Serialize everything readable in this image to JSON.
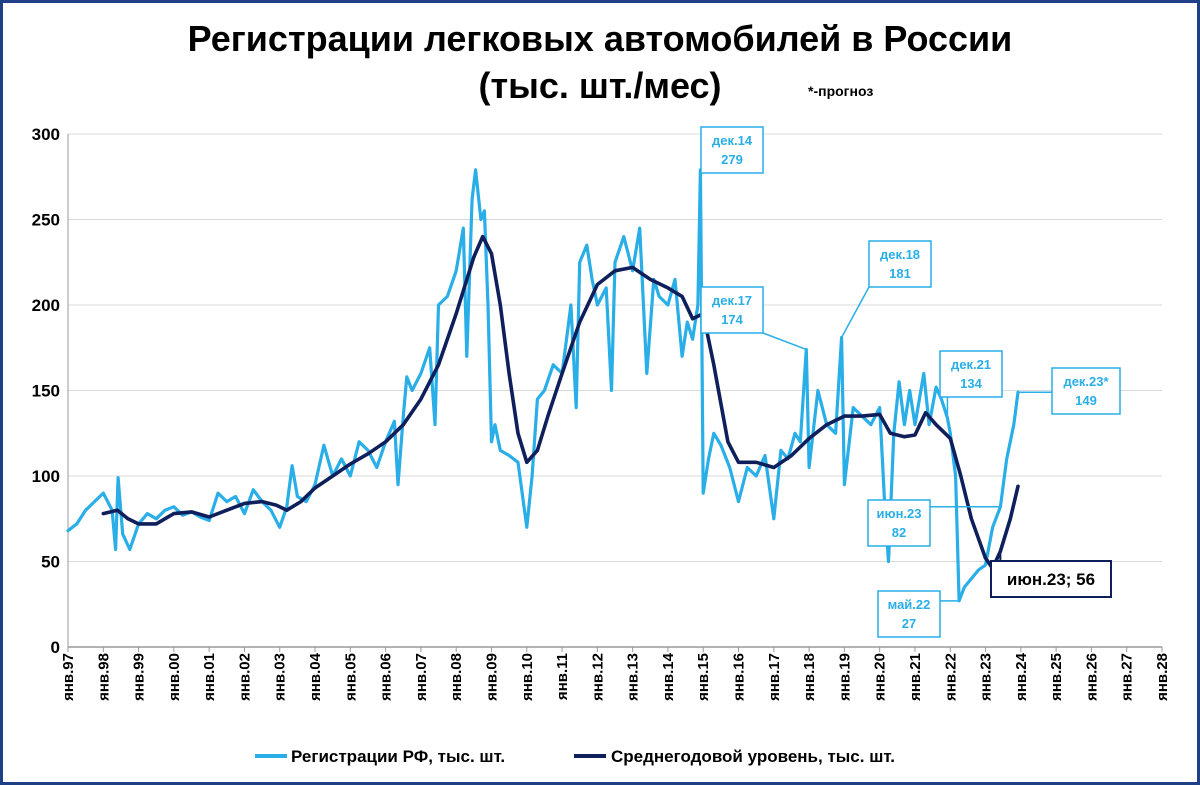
{
  "chart_data": {
    "type": "line",
    "title_line1": "Регистрации легковых автомобилей в России",
    "title_line2": "(тыс. шт./мес)",
    "note": "*-прогноз",
    "ylim": [
      0,
      300
    ],
    "yticks": [
      "0",
      "50",
      "100",
      "150",
      "200",
      "250",
      "300"
    ],
    "xlim": [
      1997,
      2028
    ],
    "xticks": [
      "янв.97",
      "янв.98",
      "янв.99",
      "янв.00",
      "янв.01",
      "янв.02",
      "янв.03",
      "янв.04",
      "янв.05",
      "янв.06",
      "янв.07",
      "янв.08",
      "янв.09",
      "янв.10",
      "янв.11",
      "янв.12",
      "янв.13",
      "янв.14",
      "янв.15",
      "янв.16",
      "янв.17",
      "янв.18",
      "янв.19",
      "янв.20",
      "янв.21",
      "янв.22",
      "янв.23",
      "янв.24",
      "янв.25",
      "янв.26",
      "янв.27",
      "янв.28"
    ],
    "grid": "horizontal",
    "legend_position": "bottom",
    "colors": {
      "monthly": "#29aee8",
      "average": "#0f1f5c",
      "axis": "#999999",
      "grid": "#d9d9d9"
    },
    "series": [
      {
        "name": "Регистрации РФ, тыс. шт.",
        "points": [
          [
            1997.0,
            68
          ],
          [
            1997.25,
            72
          ],
          [
            1997.5,
            80
          ],
          [
            1997.75,
            85
          ],
          [
            1998.0,
            90
          ],
          [
            1998.25,
            80
          ],
          [
            1998.35,
            57
          ],
          [
            1998.42,
            99
          ],
          [
            1998.55,
            66
          ],
          [
            1998.75,
            57
          ],
          [
            1999.0,
            72
          ],
          [
            1999.25,
            78
          ],
          [
            1999.5,
            75
          ],
          [
            1999.75,
            80
          ],
          [
            2000.0,
            82
          ],
          [
            2000.25,
            77
          ],
          [
            2000.5,
            79
          ],
          [
            2000.75,
            76
          ],
          [
            2001.0,
            74
          ],
          [
            2001.25,
            90
          ],
          [
            2001.5,
            85
          ],
          [
            2001.75,
            88
          ],
          [
            2002.0,
            78
          ],
          [
            2002.25,
            92
          ],
          [
            2002.5,
            85
          ],
          [
            2002.75,
            80
          ],
          [
            2003.0,
            70
          ],
          [
            2003.2,
            82
          ],
          [
            2003.35,
            106
          ],
          [
            2003.5,
            88
          ],
          [
            2003.75,
            85
          ],
          [
            2004.0,
            95
          ],
          [
            2004.25,
            118
          ],
          [
            2004.5,
            100
          ],
          [
            2004.75,
            110
          ],
          [
            2005.0,
            100
          ],
          [
            2005.25,
            120
          ],
          [
            2005.5,
            115
          ],
          [
            2005.75,
            105
          ],
          [
            2006.0,
            120
          ],
          [
            2006.25,
            132
          ],
          [
            2006.35,
            95
          ],
          [
            2006.5,
            135
          ],
          [
            2006.6,
            158
          ],
          [
            2006.75,
            150
          ],
          [
            2007.0,
            160
          ],
          [
            2007.25,
            175
          ],
          [
            2007.4,
            130
          ],
          [
            2007.5,
            200
          ],
          [
            2007.75,
            205
          ],
          [
            2008.0,
            220
          ],
          [
            2008.2,
            245
          ],
          [
            2008.3,
            170
          ],
          [
            2008.45,
            262
          ],
          [
            2008.55,
            279
          ],
          [
            2008.7,
            250
          ],
          [
            2008.8,
            255
          ],
          [
            2008.9,
            200
          ],
          [
            2009.0,
            120
          ],
          [
            2009.1,
            130
          ],
          [
            2009.25,
            115
          ],
          [
            2009.5,
            112
          ],
          [
            2009.75,
            108
          ],
          [
            2010.0,
            70
          ],
          [
            2010.15,
            100
          ],
          [
            2010.3,
            145
          ],
          [
            2010.5,
            150
          ],
          [
            2010.75,
            165
          ],
          [
            2011.0,
            160
          ],
          [
            2011.25,
            200
          ],
          [
            2011.4,
            140
          ],
          [
            2011.5,
            225
          ],
          [
            2011.7,
            235
          ],
          [
            2011.85,
            215
          ],
          [
            2012.0,
            200
          ],
          [
            2012.25,
            210
          ],
          [
            2012.4,
            150
          ],
          [
            2012.5,
            225
          ],
          [
            2012.75,
            240
          ],
          [
            2013.0,
            220
          ],
          [
            2013.2,
            245
          ],
          [
            2013.4,
            160
          ],
          [
            2013.6,
            215
          ],
          [
            2013.75,
            205
          ],
          [
            2014.0,
            200
          ],
          [
            2014.2,
            215
          ],
          [
            2014.4,
            170
          ],
          [
            2014.55,
            190
          ],
          [
            2014.7,
            180
          ],
          [
            2014.85,
            200
          ],
          [
            2014.92,
            279
          ],
          [
            2015.0,
            90
          ],
          [
            2015.15,
            110
          ],
          [
            2015.3,
            125
          ],
          [
            2015.5,
            118
          ],
          [
            2015.75,
            105
          ],
          [
            2016.0,
            85
          ],
          [
            2016.25,
            105
          ],
          [
            2016.5,
            100
          ],
          [
            2016.75,
            112
          ],
          [
            2017.0,
            75
          ],
          [
            2017.2,
            115
          ],
          [
            2017.4,
            110
          ],
          [
            2017.6,
            125
          ],
          [
            2017.75,
            120
          ],
          [
            2017.92,
            174
          ],
          [
            2018.0,
            105
          ],
          [
            2018.25,
            150
          ],
          [
            2018.5,
            130
          ],
          [
            2018.75,
            125
          ],
          [
            2018.92,
            181
          ],
          [
            2019.0,
            95
          ],
          [
            2019.25,
            140
          ],
          [
            2019.5,
            135
          ],
          [
            2019.75,
            130
          ],
          [
            2020.0,
            140
          ],
          [
            2020.15,
            80
          ],
          [
            2020.25,
            50
          ],
          [
            2020.4,
            125
          ],
          [
            2020.55,
            155
          ],
          [
            2020.7,
            130
          ],
          [
            2020.85,
            150
          ],
          [
            2021.0,
            130
          ],
          [
            2021.25,
            160
          ],
          [
            2021.4,
            130
          ],
          [
            2021.6,
            152
          ],
          [
            2021.75,
            145
          ],
          [
            2021.92,
            134
          ],
          [
            2022.0,
            125
          ],
          [
            2022.15,
            100
          ],
          [
            2022.25,
            27
          ],
          [
            2022.4,
            35
          ],
          [
            2022.6,
            40
          ],
          [
            2022.8,
            45
          ],
          [
            2023.0,
            48
          ],
          [
            2023.2,
            70
          ],
          [
            2023.42,
            82
          ],
          [
            2023.6,
            110
          ],
          [
            2023.8,
            130
          ],
          [
            2023.92,
            149
          ]
        ]
      },
      {
        "name": "Среднегодовой уровень, тыс. шт.",
        "points": [
          [
            1998.0,
            78
          ],
          [
            1998.4,
            80
          ],
          [
            1998.7,
            75
          ],
          [
            1999.0,
            72
          ],
          [
            1999.5,
            72
          ],
          [
            2000.0,
            78
          ],
          [
            2000.5,
            79
          ],
          [
            2001.0,
            76
          ],
          [
            2001.5,
            80
          ],
          [
            2002.0,
            84
          ],
          [
            2002.5,
            85
          ],
          [
            2002.9,
            83
          ],
          [
            2003.2,
            80
          ],
          [
            2003.6,
            85
          ],
          [
            2004.0,
            93
          ],
          [
            2004.5,
            100
          ],
          [
            2005.0,
            107
          ],
          [
            2005.5,
            113
          ],
          [
            2006.0,
            120
          ],
          [
            2006.5,
            130
          ],
          [
            2007.0,
            145
          ],
          [
            2007.5,
            165
          ],
          [
            2008.0,
            195
          ],
          [
            2008.5,
            228
          ],
          [
            2008.75,
            240
          ],
          [
            2009.0,
            230
          ],
          [
            2009.25,
            200
          ],
          [
            2009.5,
            160
          ],
          [
            2009.75,
            125
          ],
          [
            2010.0,
            108
          ],
          [
            2010.3,
            115
          ],
          [
            2010.6,
            135
          ],
          [
            2011.0,
            160
          ],
          [
            2011.5,
            190
          ],
          [
            2012.0,
            212
          ],
          [
            2012.5,
            220
          ],
          [
            2013.0,
            222
          ],
          [
            2013.5,
            215
          ],
          [
            2014.0,
            210
          ],
          [
            2014.4,
            205
          ],
          [
            2014.7,
            192
          ],
          [
            2015.0,
            195
          ],
          [
            2015.3,
            165
          ],
          [
            2015.7,
            120
          ],
          [
            2016.0,
            108
          ],
          [
            2016.5,
            108
          ],
          [
            2017.0,
            105
          ],
          [
            2017.5,
            112
          ],
          [
            2018.0,
            122
          ],
          [
            2018.5,
            130
          ],
          [
            2019.0,
            135
          ],
          [
            2019.5,
            135
          ],
          [
            2020.0,
            136
          ],
          [
            2020.3,
            125
          ],
          [
            2020.7,
            123
          ],
          [
            2021.0,
            124
          ],
          [
            2021.3,
            137
          ],
          [
            2021.6,
            130
          ],
          [
            2022.0,
            122
          ],
          [
            2022.3,
            100
          ],
          [
            2022.6,
            75
          ],
          [
            2023.0,
            52
          ],
          [
            2023.2,
            46
          ],
          [
            2023.42,
            56
          ],
          [
            2023.7,
            75
          ],
          [
            2023.92,
            94
          ]
        ]
      }
    ],
    "annotations": [
      {
        "label": "дек.14",
        "value": "279",
        "x": 2014.92,
        "y": 279
      },
      {
        "label": "дек.17",
        "value": "174",
        "x": 2017.92,
        "y": 174
      },
      {
        "label": "дек.18",
        "value": "181",
        "x": 2018.92,
        "y": 181
      },
      {
        "label": "дек.21",
        "value": "134",
        "x": 2021.92,
        "y": 134
      },
      {
        "label": "дек.23*",
        "value": "149",
        "x": 2023.92,
        "y": 149
      },
      {
        "label": "июн.23",
        "value": "82",
        "x": 2023.42,
        "y": 82
      },
      {
        "label": "май.22",
        "value": "27",
        "x": 2022.25,
        "y": 27
      },
      {
        "label": "июн.23; 56",
        "x": 2023.42,
        "y": 56,
        "style": "dark"
      }
    ]
  }
}
